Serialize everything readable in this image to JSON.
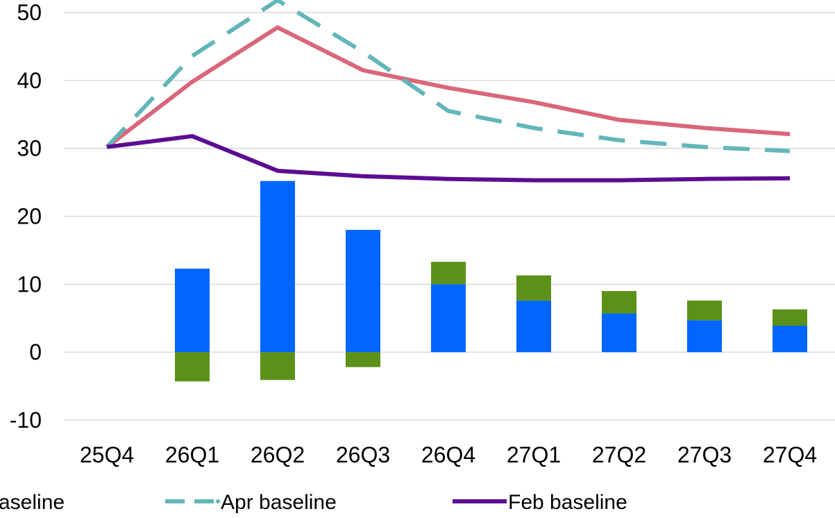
{
  "chart_data": {
    "type": "bar",
    "categories": [
      "25Q4",
      "26Q1",
      "26Q2",
      "26Q3",
      "26Q4",
      "27Q1",
      "27Q2",
      "27Q3",
      "27Q4"
    ],
    "ylim": [
      -10,
      50
    ],
    "yticks": [
      -10,
      0,
      10,
      20,
      30,
      40,
      50
    ],
    "grid": true,
    "stacked_bars": [
      {
        "color": "#0066ff",
        "values": [
          0,
          12.3,
          25.2,
          18.0,
          10.0,
          7.6,
          5.7,
          4.7,
          3.9
        ]
      },
      {
        "color": "#5b9119",
        "values": [
          0,
          -4.3,
          -4.1,
          -2.2,
          3.3,
          3.7,
          3.3,
          2.9,
          2.4
        ]
      }
    ],
    "series": [
      {
        "color": "#d9667a",
        "dash": "solid",
        "values": [
          30.2,
          39.8,
          47.8,
          41.5,
          38.9,
          36.8,
          34.2,
          33.0,
          32.1
        ]
      },
      {
        "name": "Apr baseline",
        "color": "#62b6b9",
        "dash": "dashed",
        "values": [
          30.2,
          43.6,
          51.8,
          44.2,
          35.5,
          33.0,
          31.2,
          30.2,
          29.6
        ]
      },
      {
        "name": "Feb baseline",
        "color": "#5c0d93",
        "dash": "solid",
        "values": [
          30.2,
          31.8,
          26.7,
          25.9,
          25.5,
          25.3,
          25.3,
          25.5,
          25.6
        ]
      }
    ],
    "legend": {
      "placement": "bottom",
      "items": [
        {
          "label": "aseline",
          "color": "#d9667a",
          "dash": "solid"
        },
        {
          "label": "Apr baseline",
          "color": "#62b6b9",
          "dash": "dashed"
        },
        {
          "label": "Feb baseline",
          "color": "#5c0d93",
          "dash": "solid"
        }
      ]
    }
  }
}
